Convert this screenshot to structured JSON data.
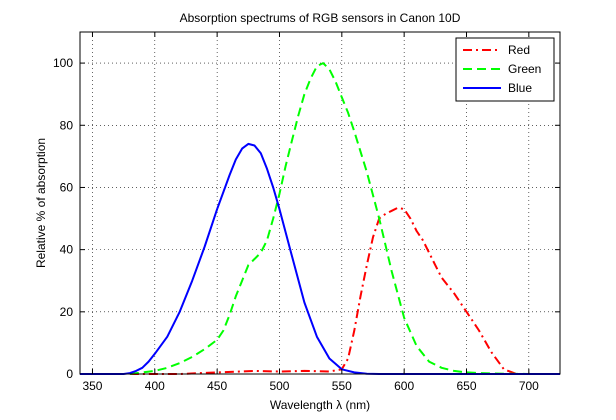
{
  "chart_data": {
    "type": "line",
    "title": "Absorption spectrums of RGB sensors in Canon 10D",
    "xlabel": "Wavelength λ (nm)",
    "ylabel": "Relative % of absorption",
    "xlim": [
      340,
      725
    ],
    "ylim": [
      0,
      110
    ],
    "xticks": [
      350,
      400,
      450,
      500,
      550,
      600,
      650,
      700
    ],
    "yticks": [
      0,
      20,
      40,
      60,
      80,
      100
    ],
    "grid": true,
    "legend_position": "top-right",
    "series": [
      {
        "name": "Red",
        "color": "#ff0000",
        "linestyle": "dashdot",
        "x": [
          380,
          420,
          450,
          480,
          500,
          520,
          540,
          550,
          555,
          560,
          565,
          570,
          575,
          580,
          585,
          590,
          595,
          600,
          605,
          610,
          615,
          620,
          625,
          630,
          640,
          650,
          660,
          670,
          680,
          690,
          700,
          725
        ],
        "y": [
          0,
          0,
          0.5,
          1,
          0.8,
          1,
          0.8,
          1.5,
          5,
          14,
          25,
          35,
          44,
          50,
          51.5,
          52.5,
          53.5,
          53,
          50,
          46,
          43,
          39,
          35,
          31,
          26,
          20,
          14,
          7,
          1.5,
          0,
          0,
          0
        ]
      },
      {
        "name": "Green",
        "color": "#00ff00",
        "linestyle": "dashed",
        "x": [
          380,
          390,
          400,
          410,
          420,
          430,
          440,
          450,
          455,
          460,
          465,
          470,
          475,
          480,
          485,
          490,
          495,
          500,
          505,
          510,
          515,
          520,
          525,
          530,
          535,
          540,
          545,
          550,
          555,
          560,
          570,
          580,
          590,
          600,
          610,
          620,
          630,
          640,
          650,
          660,
          670,
          680,
          700,
          725
        ],
        "y": [
          0,
          0.5,
          1,
          2,
          3.5,
          5.5,
          8,
          11,
          14,
          19,
          25,
          30,
          35,
          37,
          39,
          43,
          50,
          58,
          67,
          75,
          83,
          90,
          95,
          99,
          100,
          98,
          94,
          89,
          84,
          78,
          65,
          50,
          33,
          18,
          9,
          4,
          2,
          1,
          0.5,
          0.3,
          0.2,
          0.1,
          0,
          0
        ]
      },
      {
        "name": "Blue",
        "color": "#0000ff",
        "linestyle": "solid",
        "x": [
          340,
          375,
          380,
          385,
          390,
          395,
          400,
          410,
          420,
          430,
          440,
          450,
          460,
          465,
          470,
          475,
          480,
          485,
          490,
          495,
          500,
          510,
          520,
          530,
          540,
          550,
          560,
          570,
          580,
          725
        ],
        "y": [
          0,
          0,
          0.3,
          1,
          2,
          4,
          6.5,
          12,
          20,
          30,
          41,
          53,
          64,
          69,
          72.5,
          74,
          73.5,
          71,
          66,
          60,
          53,
          38,
          23,
          12,
          5,
          1.5,
          0.5,
          0.1,
          0,
          0
        ]
      }
    ]
  }
}
